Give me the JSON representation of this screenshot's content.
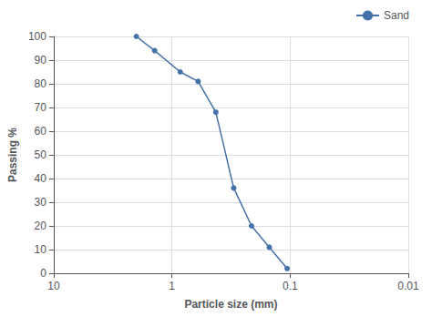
{
  "chart_data": {
    "type": "line",
    "x": [
      2.0,
      1.4,
      0.85,
      0.6,
      0.425,
      0.3,
      0.212,
      0.15,
      0.106
    ],
    "series": [
      {
        "name": "Sand",
        "color": "#4472a8",
        "marker": "circle",
        "line_style": "solid",
        "values": [
          100,
          94,
          85,
          81,
          68,
          36,
          20,
          11,
          2
        ]
      }
    ],
    "x_label": "Particle size (mm)",
    "y_label": "Passing %",
    "log": "x",
    "xlim": [
      10,
      0.01
    ],
    "xticks": [
      10,
      1,
      0.1,
      0.01
    ],
    "ylim": [
      0,
      100
    ],
    "yticks": [
      0,
      10,
      20,
      30,
      40,
      50,
      60,
      70,
      80,
      90,
      100
    ],
    "grid": true,
    "legend": "upper right"
  }
}
